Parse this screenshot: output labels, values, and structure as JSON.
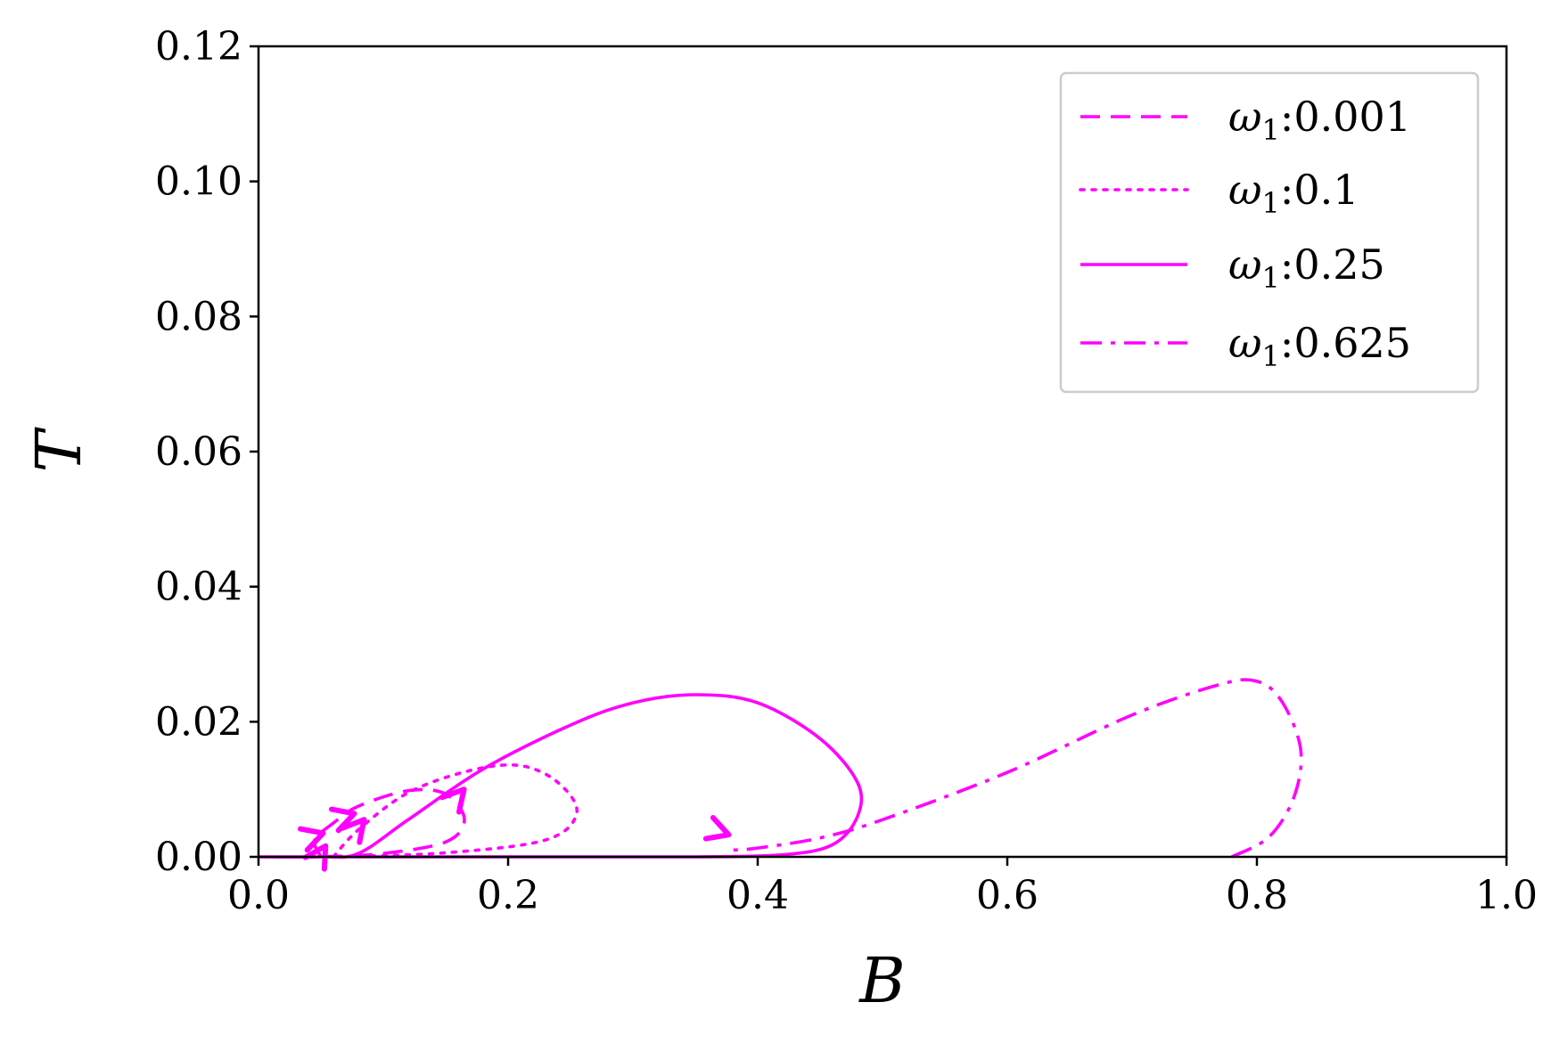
{
  "chart_data": {
    "type": "line",
    "title": "",
    "xlabel": "B",
    "ylabel": "T",
    "xlim": [
      0.0,
      1.0
    ],
    "ylim": [
      0.0,
      0.12
    ],
    "xticks": [
      "0.0",
      "0.2",
      "0.4",
      "0.6",
      "0.8",
      "1.0"
    ],
    "yticks": [
      "0.00",
      "0.02",
      "0.04",
      "0.06",
      "0.08",
      "0.10",
      "0.12"
    ],
    "grid": false,
    "legend_position": "upper-right",
    "line_color": "#ff00ff",
    "series": [
      {
        "name": "ω1:0.001",
        "legend_symbol": "ω",
        "legend_subscript": "1",
        "legend_value": ":0.001",
        "style": "dashed",
        "points": [
          [
            0.05,
            0.0
          ],
          [
            0.045,
            0.0025
          ],
          [
            0.06,
            0.005
          ],
          [
            0.08,
            0.0075
          ],
          [
            0.12,
            0.0098
          ],
          [
            0.15,
            0.0093
          ],
          [
            0.165,
            0.0055
          ],
          [
            0.15,
            0.0022
          ],
          [
            0.1,
            0.0005
          ],
          [
            0.05,
            0.0
          ]
        ]
      },
      {
        "name": "ω1:0.1",
        "legend_symbol": "ω",
        "legend_subscript": "1",
        "legend_value": ":0.1",
        "style": "dotted",
        "points": [
          [
            0.06,
            0.0
          ],
          [
            0.08,
            0.004
          ],
          [
            0.12,
            0.0095
          ],
          [
            0.17,
            0.0128
          ],
          [
            0.21,
            0.0135
          ],
          [
            0.24,
            0.011
          ],
          [
            0.255,
            0.0065
          ],
          [
            0.23,
            0.0025
          ],
          [
            0.15,
            0.0006
          ],
          [
            0.06,
            0.0
          ]
        ]
      },
      {
        "name": "ω1:0.25",
        "legend_symbol": "ω",
        "legend_subscript": "1",
        "legend_value": ":0.25",
        "style": "solid",
        "points": [
          [
            0.0,
            0.0
          ],
          [
            0.05,
            0.0
          ],
          [
            0.08,
            0.0005
          ],
          [
            0.12,
            0.0055
          ],
          [
            0.18,
            0.013
          ],
          [
            0.25,
            0.0195
          ],
          [
            0.3,
            0.0228
          ],
          [
            0.35,
            0.024
          ],
          [
            0.4,
            0.0228
          ],
          [
            0.45,
            0.0175
          ],
          [
            0.48,
            0.011
          ],
          [
            0.48,
            0.006
          ],
          [
            0.46,
            0.0018
          ],
          [
            0.42,
            0.0003
          ],
          [
            0.35,
            0.0
          ],
          [
            0.25,
            0.0
          ],
          [
            0.1,
            0.0
          ],
          [
            0.0,
            0.0
          ]
        ]
      },
      {
        "name": "ω1:0.625",
        "legend_symbol": "ω",
        "legend_subscript": "1",
        "legend_value": ":0.625",
        "style": "dashdot",
        "points": [
          [
            0.78,
            0.0
          ],
          [
            0.81,
            0.003
          ],
          [
            0.83,
            0.009
          ],
          [
            0.835,
            0.016
          ],
          [
            0.82,
            0.023
          ],
          [
            0.8,
            0.026
          ],
          [
            0.77,
            0.0255
          ],
          [
            0.7,
            0.021
          ],
          [
            0.6,
            0.0125
          ],
          [
            0.5,
            0.0055
          ],
          [
            0.45,
            0.0028
          ],
          [
            0.4,
            0.0013
          ],
          [
            0.38,
            0.001
          ]
        ]
      }
    ],
    "arrows": [
      {
        "series": "ω1:0.001",
        "at": [
          0.045,
          0.0031
        ],
        "toward": [
          0.07,
          0.0046
        ]
      },
      {
        "series": "ω1:0.001",
        "at": [
          0.07,
          0.006
        ],
        "toward": [
          0.095,
          0.0075
        ]
      },
      {
        "series": "ω1:0.1",
        "at": [
          0.05,
          0.0005
        ],
        "toward": [
          0.06,
          0.0035
        ]
      },
      {
        "series": "ω1:0.1",
        "at": [
          0.08,
          0.0045
        ],
        "toward": [
          0.095,
          0.0078
        ]
      },
      {
        "series": "ω1:0.25",
        "at": [
          0.16,
          0.009
        ],
        "toward": [
          0.178,
          0.0128
        ]
      },
      {
        "series": "ω1:0.625",
        "at": [
          0.37,
          0.0037
        ],
        "toward": [
          0.4,
          0.0018
        ]
      }
    ]
  }
}
